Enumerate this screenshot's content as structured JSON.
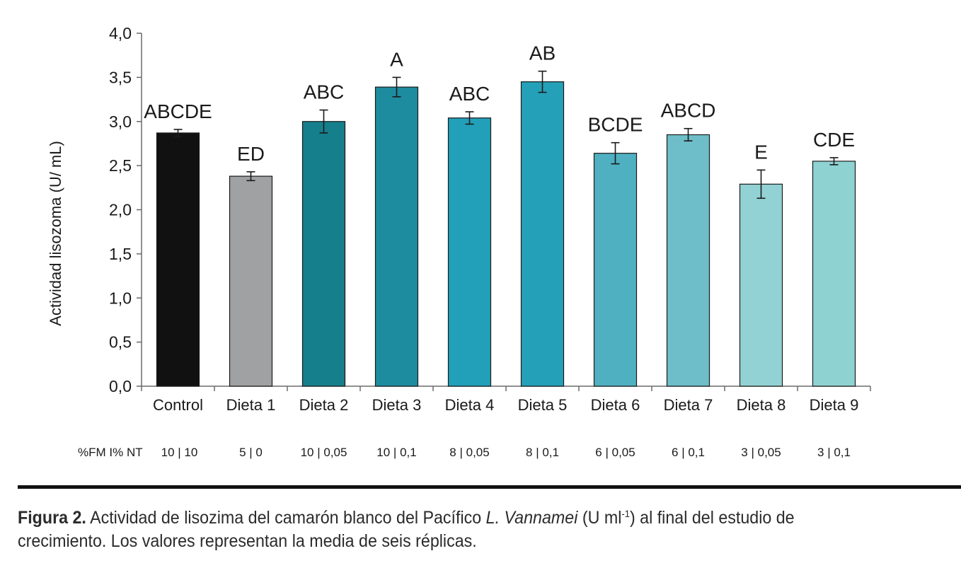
{
  "chart_data": {
    "type": "bar",
    "ylabel": "Actividad lisozoma (U/ mL)",
    "ylim": [
      0,
      4
    ],
    "yticks": [
      "0,0",
      "0,5",
      "1,0",
      "1,5",
      "2,0",
      "2,5",
      "3,0",
      "3,5",
      "4,0"
    ],
    "categories": [
      "Control",
      "Dieta 1",
      "Dieta 2",
      "Dieta 3",
      "Dieta 4",
      "Dieta 5",
      "Dieta 6",
      "Dieta 7",
      "Dieta 8",
      "Dieta 9"
    ],
    "values": [
      2.87,
      2.38,
      3.0,
      3.39,
      3.04,
      3.45,
      2.64,
      2.85,
      2.29,
      2.55
    ],
    "errors": [
      0.04,
      0.05,
      0.13,
      0.11,
      0.07,
      0.12,
      0.12,
      0.07,
      0.16,
      0.04
    ],
    "significance_letters": [
      "ABCDE",
      "ED",
      "ABC",
      "A",
      "ABC",
      "AB",
      "BCDE",
      "ABCD",
      "E",
      "CDE"
    ],
    "bar_colors": [
      "#111111",
      "#9fa1a3",
      "#167f8c",
      "#1d8c9f",
      "#229fb9",
      "#24a1b8",
      "#4fb0c2",
      "#6dbec9",
      "#93d2d4",
      "#8ed3d2"
    ],
    "composition_header": "%FM I% NT",
    "composition": [
      "10 | 10",
      "5 | 0",
      "10 | 0,05",
      "10 | 0,1",
      "8 | 0,05",
      "8 | 0,1",
      "6 | 0,05",
      "6 | 0,1",
      "3 | 0,05",
      "3 | 0,1"
    ]
  },
  "caption": {
    "label": "Figura 2.",
    "text_before": "Actividad de lisozima del camarón blanco del Pacífico",
    "species": "L. Vannamei",
    "units_open": "(U ml",
    "units_sup": "-1",
    "text_after": ") al final del estudio de crecimiento. Los valores representan la media de seis réplicas."
  }
}
